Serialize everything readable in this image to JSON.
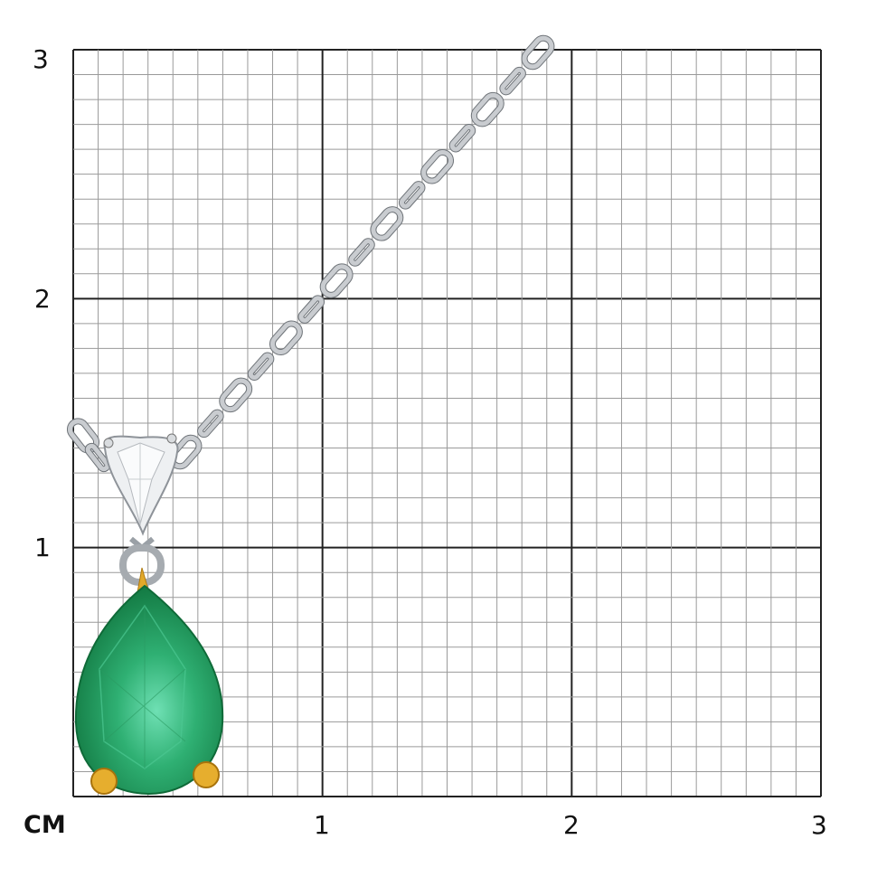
{
  "scale": {
    "unit_label": "CM",
    "x_ticks": [
      "1",
      "2",
      "3"
    ],
    "y_ticks": [
      "3",
      "2",
      "1"
    ],
    "minor_divisions_per_unit": 10,
    "range_cm": [
      0,
      3
    ]
  },
  "product": {
    "main_stone": "emerald-pear",
    "accent_stone": "diamond-pear",
    "chain": "cable-chain",
    "colors": {
      "emerald": "#1f9a5a",
      "emerald_light": "#5fd6a6",
      "prong_gold": "#e2a92a",
      "chain_metal": "#c9ccd0",
      "grid_minor": "#9a9a9a",
      "grid_major": "#222222"
    }
  }
}
